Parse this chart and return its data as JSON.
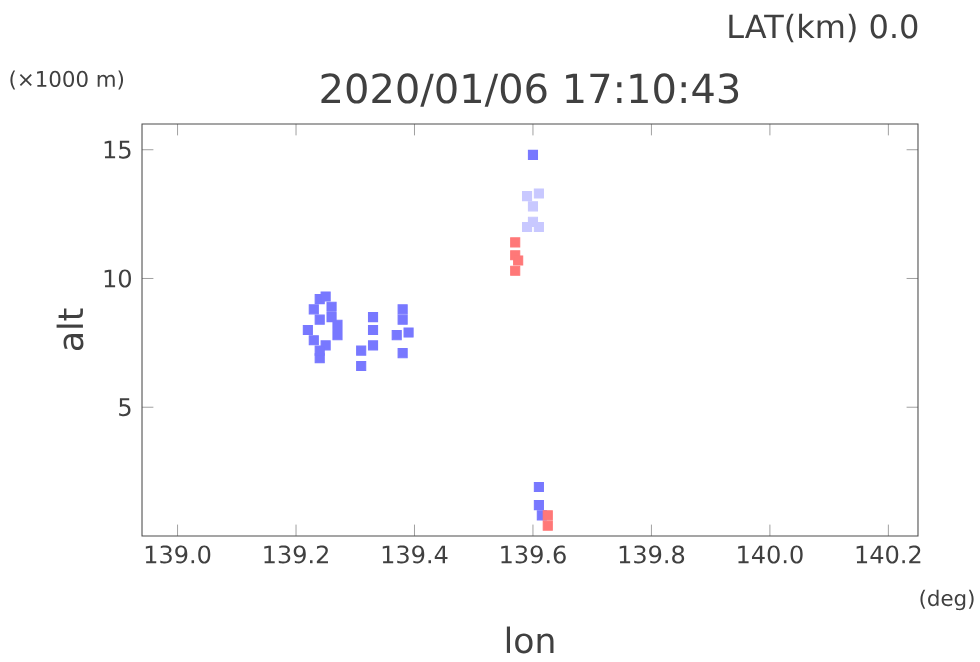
{
  "chart_data": {
    "type": "scatter",
    "title": "2020/01/06 17:10:43",
    "subtitle": "LAT(km) 0.0",
    "xlabel": "lon",
    "ylabel": "alt",
    "annotations": [
      "(×1000 m)",
      "(deg)"
    ],
    "xlim": [
      138.94,
      140.25
    ],
    "ylim": [
      0,
      16
    ],
    "xticks": [
      {
        "value": 139.0,
        "label": "139.0"
      },
      {
        "value": 139.2,
        "label": "139.2"
      },
      {
        "value": 139.4,
        "label": "139.4"
      },
      {
        "value": 139.6,
        "label": "139.6"
      },
      {
        "value": 139.8,
        "label": "139.8"
      },
      {
        "value": 140.0,
        "label": "140.0"
      },
      {
        "value": 140.2,
        "label": "140.2"
      }
    ],
    "yticks": [
      5,
      10,
      15
    ],
    "grid": false,
    "marker": "square",
    "series": [
      {
        "color": "#7878ff",
        "x": [
          139.22,
          139.23,
          139.24,
          139.25,
          139.26,
          139.27,
          139.23,
          139.25,
          139.27,
          139.24,
          139.26,
          139.24,
          139.24,
          139.31,
          139.31,
          139.33,
          139.33,
          139.33,
          139.37,
          139.38,
          139.39,
          139.38,
          139.38,
          139.61,
          139.61,
          139.615,
          139.6
        ],
        "values": [
          8.0,
          8.8,
          9.2,
          9.3,
          8.9,
          8.2,
          7.6,
          7.4,
          7.8,
          8.4,
          8.5,
          6.9,
          7.2,
          6.6,
          7.2,
          7.4,
          8.0,
          8.5,
          7.8,
          8.8,
          7.9,
          7.1,
          8.4,
          1.9,
          1.2,
          0.8,
          14.8
        ]
      },
      {
        "color": "#c8c8ff",
        "x": [
          139.59,
          139.6,
          139.61,
          139.59,
          139.61,
          139.6
        ],
        "values": [
          12.0,
          12.2,
          12.0,
          13.2,
          13.3,
          12.8
        ]
      },
      {
        "color": "#ff7878",
        "x": [
          139.57,
          139.57,
          139.57,
          139.575,
          139.625,
          139.625
        ],
        "values": [
          10.3,
          10.9,
          11.4,
          10.7,
          0.4,
          0.8
        ]
      }
    ]
  }
}
